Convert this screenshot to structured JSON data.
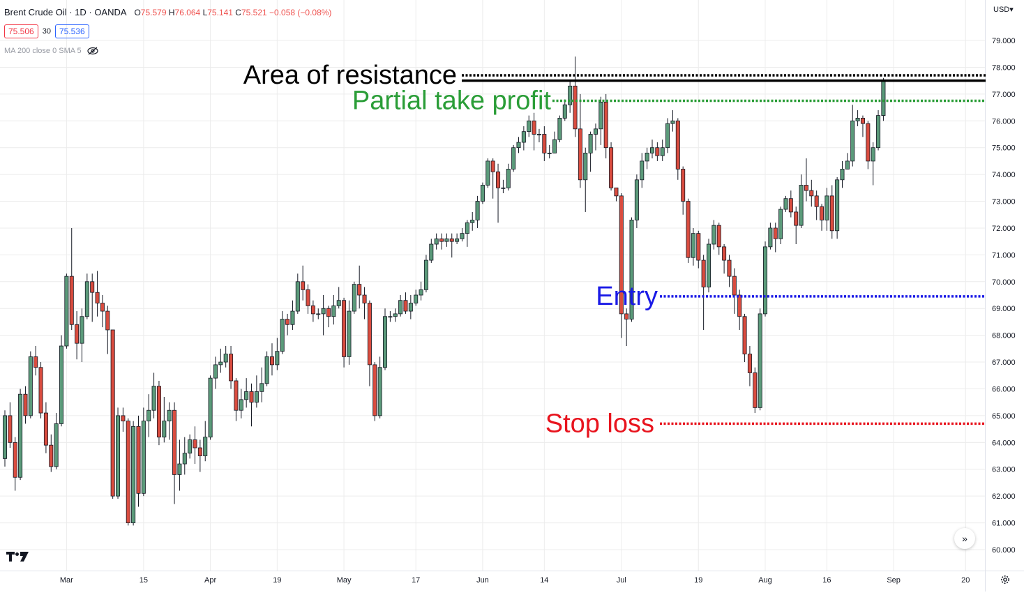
{
  "header": {
    "symbol": "Brent Crude Oil · 1D · OANDA",
    "ohlc": {
      "o_label": "O",
      "o": "75.579",
      "h_label": "H",
      "h": "76.064",
      "l_label": "L",
      "l": "75.141",
      "c_label": "C",
      "c": "75.521",
      "change": "−0.058 (−0.08%)"
    },
    "bid": "75.506",
    "spread": "30",
    "ask": "75.536",
    "indicator": "MA 200 close 0 SMA 5"
  },
  "currency": "USD",
  "colors": {
    "up": "#5b9a7a",
    "down": "#d94c3f",
    "wick": "#131722",
    "grid": "#ececec",
    "resistance": "#000000",
    "take_profit": "#2a9d37",
    "entry": "#1a1ae6",
    "stop": "#e8141e"
  },
  "icons": {
    "logo": "tradingview-logo-icon",
    "scroll": "double-chevron-right-icon",
    "settings": "gear-icon",
    "hide": "eye-off-icon"
  },
  "chart_data": {
    "type": "candlestick",
    "ylim": [
      59.7,
      79.7
    ],
    "y_ticks": [
      "60.000",
      "61.000",
      "62.000",
      "63.000",
      "64.000",
      "65.000",
      "66.000",
      "67.000",
      "68.000",
      "69.000",
      "70.000",
      "71.000",
      "72.000",
      "73.000",
      "74.000",
      "75.000",
      "76.000",
      "77.000",
      "78.000",
      "79.000"
    ],
    "x_ticks": [
      {
        "label": "Mar",
        "index": 12
      },
      {
        "label": "15",
        "index": 27
      },
      {
        "label": "Apr",
        "index": 40
      },
      {
        "label": "19",
        "index": 53
      },
      {
        "label": "May",
        "index": 66
      },
      {
        "label": "17",
        "index": 80
      },
      {
        "label": "Jun",
        "index": 93
      },
      {
        "label": "14",
        "index": 105
      },
      {
        "label": "Jul",
        "index": 120
      },
      {
        "label": "19",
        "index": 135
      },
      {
        "label": "Aug",
        "index": 148
      },
      {
        "label": "16",
        "index": 160
      },
      {
        "label": "Sep",
        "index": 173
      },
      {
        "label": "20",
        "index": 187
      }
    ],
    "candles": [
      [
        63.4,
        65.0,
        63.1,
        65.2
      ],
      [
        65.0,
        64.0,
        63.8,
        65.5
      ],
      [
        64.0,
        62.7,
        62.2,
        64.2
      ],
      [
        62.7,
        65.8,
        62.6,
        66.0
      ],
      [
        65.8,
        65.0,
        64.7,
        66.1
      ],
      [
        65.0,
        67.2,
        64.9,
        67.4
      ],
      [
        67.2,
        66.8,
        66.5,
        67.6
      ],
      [
        66.8,
        65.1,
        64.9,
        67.0
      ],
      [
        65.1,
        63.9,
        63.6,
        65.5
      ],
      [
        63.9,
        63.1,
        62.9,
        64.3
      ],
      [
        63.1,
        64.7,
        63.0,
        65.1
      ],
      [
        64.7,
        67.6,
        64.6,
        68.0
      ],
      [
        67.6,
        70.2,
        67.5,
        70.3
      ],
      [
        70.2,
        68.4,
        68.2,
        72.0
      ],
      [
        68.4,
        67.7,
        67.1,
        68.9
      ],
      [
        67.7,
        68.7,
        67.0,
        69.0
      ],
      [
        68.7,
        70.0,
        68.6,
        70.3
      ],
      [
        70.0,
        69.6,
        68.5,
        70.3
      ],
      [
        69.6,
        69.2,
        68.7,
        70.4
      ],
      [
        69.2,
        68.9,
        68.3,
        69.5
      ],
      [
        68.9,
        68.2,
        67.3,
        69.1
      ],
      [
        68.2,
        62.0,
        61.9,
        68.2
      ],
      [
        62.0,
        65.0,
        61.9,
        65.3
      ],
      [
        65.0,
        64.8,
        64.4,
        65.3
      ],
      [
        64.8,
        61.0,
        60.9,
        64.9
      ],
      [
        61.0,
        64.6,
        60.9,
        64.8
      ],
      [
        64.6,
        62.1,
        61.6,
        65.0
      ],
      [
        62.1,
        64.8,
        62.0,
        65.3
      ],
      [
        64.8,
        65.2,
        64.2,
        65.8
      ],
      [
        65.2,
        66.1,
        64.9,
        66.6
      ],
      [
        66.1,
        64.2,
        63.9,
        66.3
      ],
      [
        64.2,
        64.8,
        64.0,
        65.7
      ],
      [
        64.8,
        65.2,
        64.1,
        65.5
      ],
      [
        65.2,
        62.8,
        61.7,
        65.5
      ],
      [
        62.8,
        63.2,
        62.2,
        64.1
      ],
      [
        63.2,
        63.6,
        62.8,
        64.2
      ],
      [
        63.6,
        64.1,
        63.4,
        64.3
      ],
      [
        64.1,
        63.8,
        63.2,
        64.6
      ],
      [
        63.8,
        63.5,
        62.9,
        64.1
      ],
      [
        63.5,
        64.2,
        63.3,
        64.8
      ],
      [
        64.2,
        66.4,
        64.1,
        66.5
      ],
      [
        66.4,
        66.9,
        66.0,
        67.2
      ],
      [
        66.9,
        67.0,
        66.6,
        67.5
      ],
      [
        67.0,
        67.3,
        66.8,
        67.6
      ],
      [
        67.3,
        66.3,
        66.0,
        67.6
      ],
      [
        66.3,
        65.2,
        64.8,
        66.4
      ],
      [
        65.2,
        65.6,
        64.9,
        66.0
      ],
      [
        65.6,
        65.9,
        65.3,
        66.4
      ],
      [
        65.9,
        65.5,
        64.6,
        66.2
      ],
      [
        65.5,
        65.9,
        65.3,
        66.5
      ],
      [
        65.9,
        66.2,
        65.5,
        66.8
      ],
      [
        66.2,
        67.2,
        66.1,
        67.4
      ],
      [
        67.2,
        66.9,
        66.5,
        67.7
      ],
      [
        66.9,
        67.4,
        66.7,
        67.9
      ],
      [
        67.4,
        68.6,
        67.3,
        68.9
      ],
      [
        68.6,
        68.4,
        68.0,
        68.8
      ],
      [
        68.4,
        68.9,
        68.2,
        69.3
      ],
      [
        68.9,
        70.0,
        68.8,
        70.3
      ],
      [
        70.0,
        69.7,
        69.3,
        70.6
      ],
      [
        69.7,
        69.1,
        68.8,
        69.9
      ],
      [
        69.1,
        68.8,
        68.5,
        69.3
      ],
      [
        68.8,
        68.8,
        68.6,
        69.0
      ],
      [
        68.8,
        69.0,
        68.0,
        69.5
      ],
      [
        69.0,
        68.7,
        68.3,
        69.1
      ],
      [
        68.7,
        69.1,
        68.4,
        69.5
      ],
      [
        69.1,
        69.3,
        69.0,
        69.8
      ],
      [
        69.3,
        67.2,
        66.8,
        69.4
      ],
      [
        67.2,
        68.9,
        66.9,
        69.3
      ],
      [
        68.9,
        69.9,
        68.8,
        70.0
      ],
      [
        69.9,
        69.5,
        69.0,
        70.6
      ],
      [
        69.5,
        69.2,
        68.6,
        69.8
      ],
      [
        69.2,
        66.9,
        66.1,
        69.3
      ],
      [
        66.9,
        65.0,
        64.8,
        67.0
      ],
      [
        65.0,
        66.8,
        64.9,
        67.2
      ],
      [
        66.8,
        68.7,
        66.7,
        69.0
      ],
      [
        68.7,
        68.7,
        68.5,
        68.9
      ],
      [
        68.7,
        68.8,
        68.5,
        69.0
      ],
      [
        68.8,
        69.3,
        68.7,
        69.5
      ],
      [
        69.3,
        68.9,
        68.8,
        69.6
      ],
      [
        68.9,
        69.2,
        68.6,
        69.5
      ],
      [
        69.2,
        69.5,
        69.1,
        69.7
      ],
      [
        69.5,
        69.7,
        69.3,
        70.0
      ],
      [
        69.7,
        70.8,
        69.6,
        71.0
      ],
      [
        70.8,
        71.4,
        70.7,
        71.6
      ],
      [
        71.4,
        71.6,
        71.2,
        71.8
      ],
      [
        71.6,
        71.5,
        71.2,
        71.8
      ],
      [
        71.5,
        71.6,
        71.3,
        71.8
      ],
      [
        71.6,
        71.5,
        70.9,
        71.8
      ],
      [
        71.5,
        71.6,
        71.4,
        71.8
      ],
      [
        71.6,
        71.8,
        71.5,
        72.0
      ],
      [
        71.8,
        72.2,
        71.3,
        72.3
      ],
      [
        72.2,
        72.3,
        71.9,
        72.6
      ],
      [
        72.3,
        73.0,
        72.0,
        73.2
      ],
      [
        73.0,
        73.6,
        72.9,
        73.7
      ],
      [
        73.6,
        74.5,
        73.5,
        74.6
      ],
      [
        74.5,
        74.1,
        73.1,
        74.6
      ],
      [
        74.1,
        73.5,
        72.2,
        74.4
      ],
      [
        73.5,
        73.5,
        73.3,
        73.8
      ],
      [
        73.5,
        74.2,
        73.4,
        74.4
      ],
      [
        74.2,
        75.0,
        74.1,
        75.1
      ],
      [
        75.0,
        75.2,
        74.8,
        75.4
      ],
      [
        75.2,
        75.6,
        74.9,
        75.8
      ],
      [
        75.6,
        76.0,
        75.4,
        76.2
      ],
      [
        76.0,
        75.5,
        74.9,
        76.3
      ],
      [
        75.5,
        75.5,
        75.2,
        75.7
      ],
      [
        75.5,
        74.8,
        74.5,
        75.8
      ],
      [
        74.8,
        74.8,
        74.6,
        75.1
      ],
      [
        74.8,
        75.3,
        74.8,
        75.6
      ],
      [
        75.3,
        76.1,
        75.2,
        76.2
      ],
      [
        76.1,
        76.6,
        76.0,
        76.8
      ],
      [
        76.6,
        77.3,
        76.3,
        77.5
      ],
      [
        77.3,
        75.7,
        75.4,
        78.4
      ],
      [
        75.7,
        73.8,
        73.5,
        77.0
      ],
      [
        73.8,
        74.8,
        72.6,
        75.0
      ],
      [
        74.8,
        75.5,
        74.1,
        75.6
      ],
      [
        75.5,
        75.7,
        74.9,
        75.9
      ],
      [
        75.7,
        76.7,
        75.1,
        76.9
      ],
      [
        76.7,
        75.0,
        74.6,
        77.0
      ],
      [
        75.0,
        73.5,
        73.4,
        75.2
      ],
      [
        73.5,
        73.2,
        73.0,
        73.5
      ],
      [
        73.2,
        68.8,
        67.9,
        73.3
      ],
      [
        68.8,
        68.6,
        67.6,
        69.0
      ],
      [
        68.6,
        72.3,
        68.5,
        72.4
      ],
      [
        72.3,
        73.8,
        72.0,
        74.0
      ],
      [
        73.8,
        74.5,
        73.5,
        74.8
      ],
      [
        74.5,
        74.8,
        74.2,
        75.0
      ],
      [
        74.8,
        75.0,
        74.6,
        75.3
      ],
      [
        75.0,
        74.7,
        74.5,
        75.2
      ],
      [
        74.7,
        75.0,
        74.5,
        75.3
      ],
      [
        75.0,
        75.9,
        74.8,
        76.1
      ],
      [
        75.9,
        76.0,
        75.6,
        76.4
      ],
      [
        76.0,
        74.2,
        73.8,
        76.1
      ],
      [
        74.2,
        73.0,
        72.5,
        74.3
      ],
      [
        73.0,
        70.9,
        70.7,
        73.1
      ],
      [
        70.9,
        71.8,
        70.6,
        72.0
      ],
      [
        71.8,
        70.8,
        70.5,
        71.9
      ],
      [
        70.8,
        69.8,
        68.2,
        71.0
      ],
      [
        69.8,
        71.4,
        69.6,
        71.6
      ],
      [
        71.4,
        72.1,
        71.2,
        72.3
      ],
      [
        72.1,
        71.3,
        71.0,
        72.2
      ],
      [
        71.3,
        70.8,
        70.3,
        71.4
      ],
      [
        70.8,
        70.2,
        69.8,
        71.0
      ],
      [
        70.2,
        69.5,
        68.8,
        70.5
      ],
      [
        69.5,
        68.7,
        68.2,
        69.7
      ],
      [
        68.7,
        67.3,
        67.0,
        68.8
      ],
      [
        67.3,
        66.6,
        66.1,
        67.6
      ],
      [
        66.6,
        65.3,
        65.1,
        66.8
      ],
      [
        65.3,
        68.8,
        65.2,
        69.0
      ],
      [
        68.8,
        71.3,
        68.7,
        71.5
      ],
      [
        71.3,
        72.0,
        71.2,
        72.2
      ],
      [
        72.0,
        71.6,
        71.1,
        72.2
      ],
      [
        71.6,
        72.7,
        71.4,
        72.8
      ],
      [
        72.7,
        73.1,
        72.6,
        73.2
      ],
      [
        73.1,
        72.6,
        72.4,
        73.4
      ],
      [
        72.6,
        72.1,
        71.4,
        72.8
      ],
      [
        72.1,
        73.6,
        72.0,
        74.0
      ],
      [
        73.6,
        73.4,
        73.0,
        74.6
      ],
      [
        73.4,
        73.2,
        72.8,
        73.8
      ],
      [
        73.2,
        72.8,
        72.3,
        73.4
      ],
      [
        72.8,
        72.3,
        71.9,
        72.9
      ],
      [
        72.3,
        73.2,
        71.9,
        73.5
      ],
      [
        73.2,
        71.9,
        71.6,
        73.6
      ],
      [
        71.9,
        73.8,
        71.6,
        73.9
      ],
      [
        73.8,
        74.2,
        73.5,
        74.5
      ],
      [
        74.2,
        74.5,
        74.2,
        74.8
      ],
      [
        74.5,
        76.0,
        74.3,
        76.6
      ],
      [
        76.0,
        76.1,
        75.8,
        76.4
      ],
      [
        76.1,
        75.9,
        75.4,
        76.2
      ],
      [
        75.9,
        74.5,
        74.2,
        76.0
      ],
      [
        74.5,
        75.0,
        73.6,
        75.2
      ],
      [
        75.0,
        76.2,
        74.9,
        76.4
      ],
      [
        76.2,
        77.5,
        76.0,
        77.6
      ]
    ],
    "levels": [
      {
        "label": "Area of resistance",
        "value": 77.7,
        "style": "dotted"
      },
      {
        "label": "",
        "value": 77.5,
        "style": "solid"
      },
      {
        "label": "Partial take profit",
        "value": 76.75,
        "style": "dotted"
      },
      {
        "label": "Entry",
        "value": 69.45,
        "style": "dotted"
      },
      {
        "label": "Stop loss",
        "value": 64.7,
        "style": "dotted"
      }
    ]
  }
}
